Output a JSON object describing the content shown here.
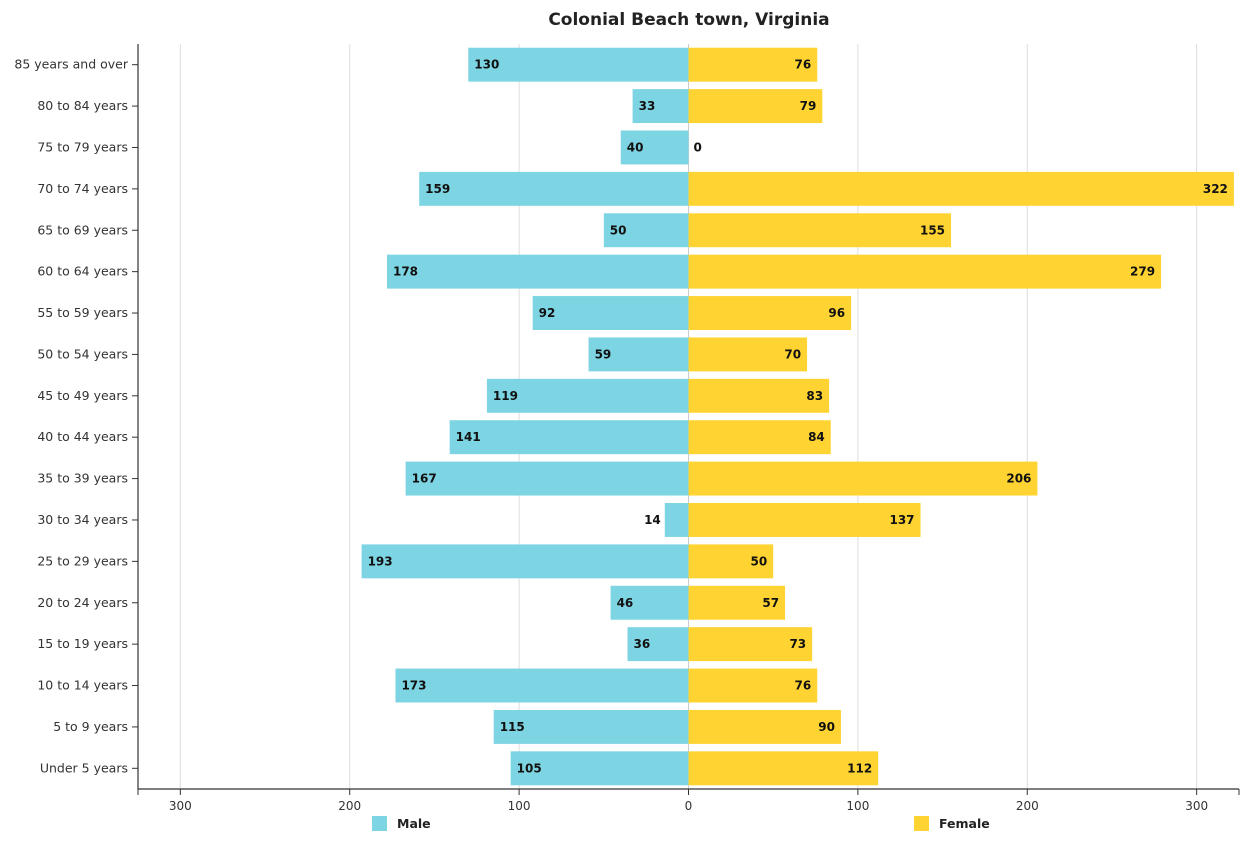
{
  "chart_data": {
    "type": "bar",
    "orientation": "horizontal",
    "layout": "population-pyramid",
    "title": "Colonial Beach town, Virginia",
    "categories": [
      "85 years and over",
      "80 to 84 years",
      "75 to 79 years",
      "70 to 74 years",
      "65 to 69 years",
      "60 to 64 years",
      "55 to 59 years",
      "50 to 54 years",
      "45 to 49 years",
      "40 to 44 years",
      "35 to 39 years",
      "30 to 34 years",
      "25 to 29 years",
      "20 to 24 years",
      "15 to 19 years",
      "10 to 14 years",
      "5 to 9 years",
      "Under 5 years"
    ],
    "series": [
      {
        "name": "Male",
        "color": "#7dd4e3",
        "direction": "left",
        "values": [
          130,
          33,
          40,
          159,
          50,
          178,
          92,
          59,
          119,
          141,
          167,
          14,
          193,
          46,
          36,
          173,
          115,
          105
        ]
      },
      {
        "name": "Female",
        "color": "#ffd432",
        "direction": "right",
        "values": [
          76,
          79,
          0,
          322,
          155,
          279,
          96,
          70,
          83,
          84,
          206,
          137,
          50,
          57,
          73,
          76,
          90,
          112
        ]
      }
    ],
    "xlim": [
      -325,
      325
    ],
    "xticks": [
      -300,
      -200,
      -100,
      0,
      100,
      200,
      300
    ],
    "xtick_labels": [
      "300",
      "200",
      "100",
      "0",
      "100",
      "200",
      "300"
    ],
    "grid": true,
    "legend_position": "bottom"
  }
}
